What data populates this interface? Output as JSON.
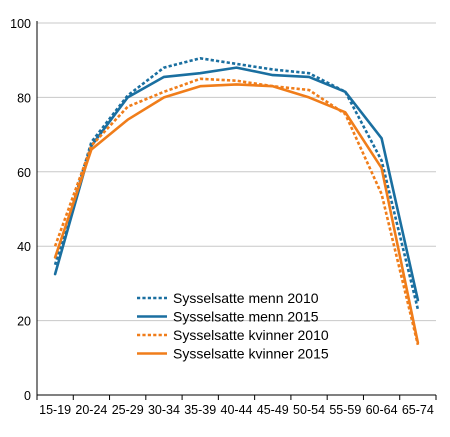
{
  "chart_data": {
    "type": "line",
    "categories": [
      "15-19",
      "20-24",
      "25-29",
      "30-34",
      "35-39",
      "40-44",
      "45-49",
      "50-54",
      "55-59",
      "60-64",
      "65-74"
    ],
    "ylim": [
      0,
      100
    ],
    "yticks": [
      0,
      20,
      40,
      60,
      80,
      100
    ],
    "grid": true,
    "legend_position": "bottom-center",
    "series": [
      {
        "name": "Sysselsatte menn 2010",
        "color": "#1a6fa0",
        "dash": true,
        "values": [
          35,
          68,
          80.5,
          88,
          90.5,
          89,
          87.5,
          86.5,
          81.5,
          63,
          23
        ]
      },
      {
        "name": "Sysselsatte menn 2015",
        "color": "#1a6fa0",
        "dash": false,
        "values": [
          32.5,
          67,
          80,
          85.5,
          86.5,
          88,
          86,
          85.5,
          81.5,
          69,
          25.5
        ]
      },
      {
        "name": "Sysselsatte kvinner 2010",
        "color": "#f07d1a",
        "dash": true,
        "values": [
          40,
          67,
          77.5,
          81.5,
          85,
          84.5,
          83,
          82,
          75.5,
          54,
          13.5
        ]
      },
      {
        "name": "Sysselsatte kvinner 2015",
        "color": "#f07d1a",
        "dash": false,
        "values": [
          37,
          66,
          74,
          80,
          83,
          83.5,
          83,
          80,
          76,
          61,
          14
        ]
      }
    ]
  }
}
